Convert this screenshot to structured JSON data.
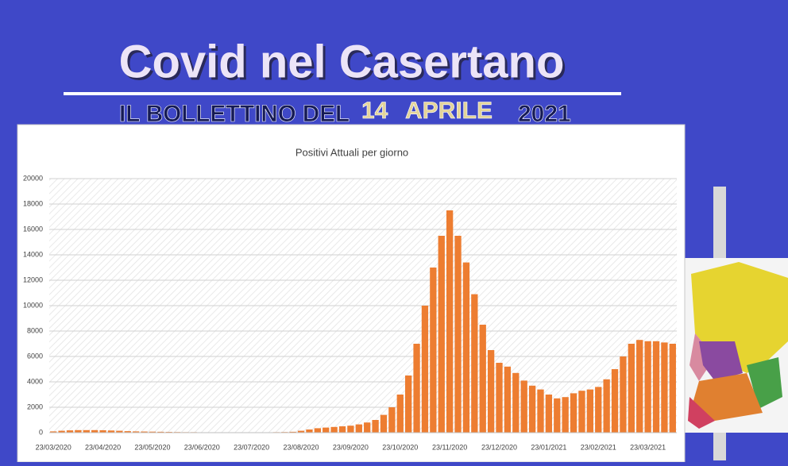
{
  "header": {
    "title": "Covid nel Casertano",
    "subtitle": "IL BOLLETTINO DEL",
    "day": "14",
    "month": "APRILE",
    "year": "2021"
  },
  "chart_data": {
    "type": "bar",
    "title": "Positivi Attuali per giorno",
    "color": "#ed7d31",
    "categories": [
      "23/03/2020",
      null,
      null,
      null,
      null,
      null,
      "23/04/2020",
      null,
      null,
      null,
      null,
      null,
      "23/05/2020",
      null,
      null,
      null,
      null,
      null,
      "23/06/2020",
      null,
      null,
      null,
      null,
      null,
      "23/07/2020",
      null,
      null,
      null,
      null,
      null,
      "23/08/2020",
      null,
      null,
      null,
      null,
      null,
      "23/09/2020",
      null,
      null,
      null,
      null,
      null,
      "23/10/2020",
      null,
      null,
      null,
      null,
      null,
      "23/11/2020",
      null,
      null,
      null,
      null,
      null,
      "23/12/2020",
      null,
      null,
      null,
      null,
      null,
      "23/01/2021",
      null,
      null,
      null,
      null,
      null,
      "23/02/2021",
      null,
      null,
      null,
      null,
      null,
      "23/03/2021",
      null,
      null,
      null
    ],
    "values": [
      100,
      150,
      180,
      200,
      200,
      200,
      190,
      170,
      150,
      120,
      100,
      90,
      80,
      70,
      60,
      50,
      40,
      40,
      30,
      30,
      30,
      30,
      30,
      30,
      30,
      30,
      30,
      40,
      50,
      70,
      150,
      250,
      350,
      400,
      450,
      500,
      550,
      650,
      800,
      1000,
      1400,
      2000,
      3000,
      4500,
      7000,
      10000,
      13000,
      15500,
      17500,
      15500,
      13400,
      10900,
      8500,
      6500,
      5500,
      5200,
      4700,
      4100,
      3700,
      3400,
      3000,
      2700,
      2800,
      3100,
      3300,
      3400,
      3600,
      4200,
      5000,
      6000,
      7000,
      7300,
      7200,
      7200,
      7100,
      7000
    ],
    "ylim": [
      0,
      20000
    ],
    "yticks": [
      0,
      2000,
      4000,
      6000,
      8000,
      10000,
      12000,
      14000,
      16000,
      18000,
      20000
    ],
    "grid": true
  }
}
